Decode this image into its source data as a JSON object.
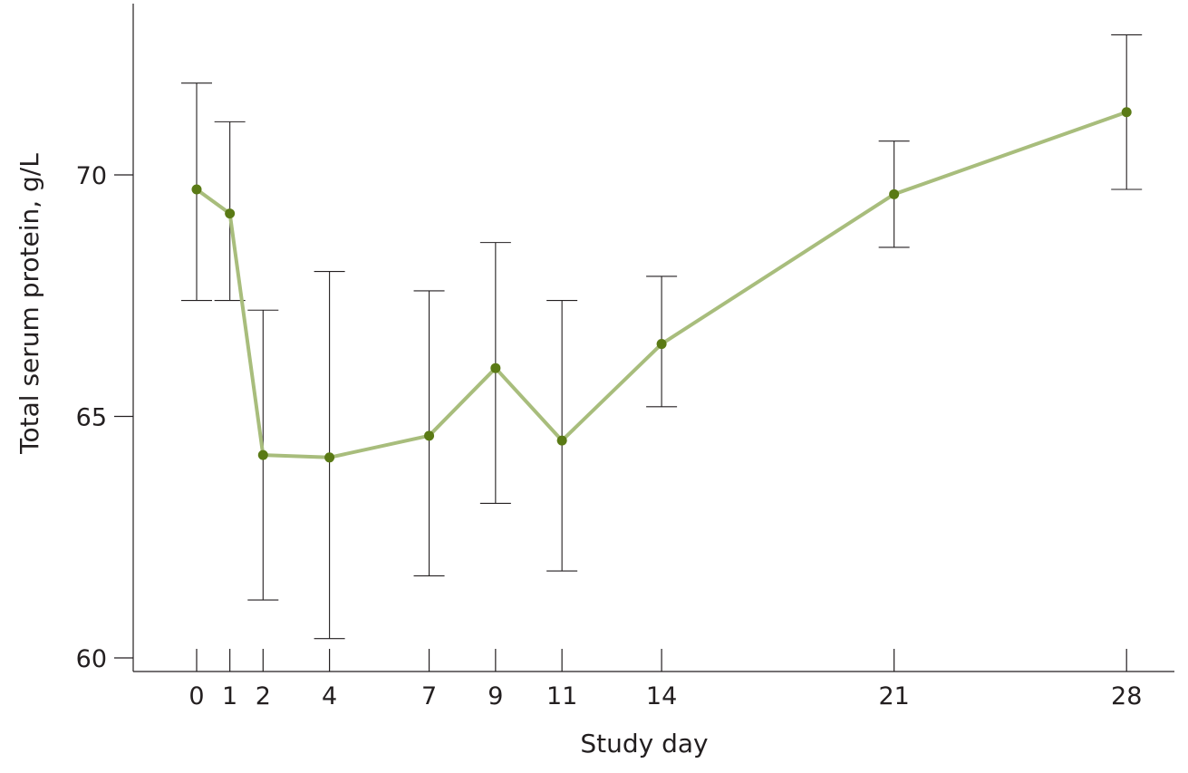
{
  "chart_data": {
    "type": "line",
    "xlabel": "Study day",
    "ylabel": "Total serum protein, g/L",
    "ylim": [
      60,
      73.5
    ],
    "xlim": [
      -2,
      30
    ],
    "grid": false,
    "legend": "none",
    "line_color": "#a8bd7c",
    "marker_color": "#5a7a15",
    "error_bar_color": "#231f20",
    "x_ticks": [
      0,
      1,
      2,
      4,
      7,
      9,
      11,
      14,
      21,
      28
    ],
    "x_tick_labels": [
      "0",
      "1",
      "2",
      "4",
      "7",
      "9",
      "11",
      "14",
      "21",
      "28"
    ],
    "y_ticks": [
      60,
      65,
      70
    ],
    "y_tick_labels": [
      "60",
      "65",
      "70"
    ],
    "series": [
      {
        "x": [
          0,
          1,
          2,
          4,
          7,
          9,
          11,
          14,
          21,
          28
        ],
        "y": [
          69.7,
          69.2,
          64.2,
          64.15,
          64.6,
          66.0,
          64.5,
          66.5,
          69.6,
          71.3
        ],
        "error_low": [
          67.4,
          67.4,
          61.2,
          60.4,
          61.7,
          63.2,
          61.8,
          65.2,
          68.5,
          69.7
        ],
        "error_high": [
          71.9,
          71.1,
          67.2,
          68.0,
          67.6,
          68.6,
          67.4,
          67.9,
          70.7,
          72.9
        ]
      }
    ]
  }
}
